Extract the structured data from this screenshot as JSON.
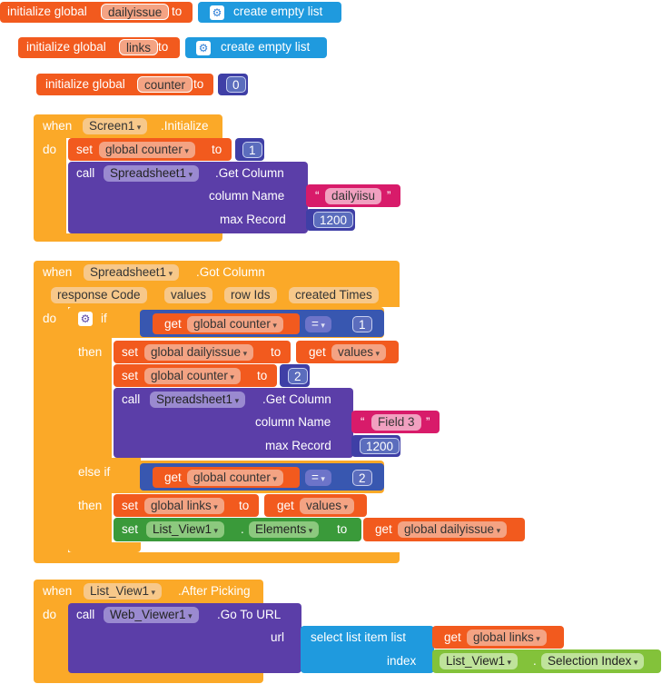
{
  "colors": {
    "orange_red": "#f25a1e",
    "orange_red_pill": "#f4a383",
    "blue": "#1f9ade",
    "indigo": "#3f3fa6",
    "indigo_pill": "#6d74c9",
    "event_orange": "#fba928",
    "event_pill": "#f7c88a",
    "purple": "#5b3ea8",
    "purple_pill": "#9a8ad0",
    "magenta": "#d81b6a",
    "green": "#3a9a3a",
    "green_pill": "#8cc97e",
    "lime": "#83c23a",
    "lime_pill": "#bfe39b",
    "ifblue": "#3857b0"
  },
  "blocks": {
    "init1": {
      "label": "initialize global",
      "var": "dailyissue",
      "to": "to",
      "value": "create empty list"
    },
    "init2": {
      "label": "initialize global",
      "var": "links",
      "to": "to",
      "value": "create empty list"
    },
    "init3": {
      "label": "initialize global",
      "var": "counter",
      "to": "to",
      "value": "0"
    },
    "screen_init": {
      "when": "when",
      "component": "Screen1",
      "event": ".Initialize",
      "do": "do",
      "set_label": "set",
      "set_var": "global counter",
      "set_to": "to",
      "set_value": "1",
      "call": "call",
      "call_component": "Spreadsheet1",
      "method": ".Get Column",
      "param1_label": "column Name",
      "param1_value": "dailyiisu",
      "param2_label": "max Record",
      "param2_value": "1200"
    },
    "got_column": {
      "when": "when",
      "component": "Spreadsheet1",
      "event": ".Got Column",
      "params": [
        "response Code",
        "values",
        "row Ids",
        "created Times"
      ],
      "do": "do",
      "if": "if",
      "get": "get",
      "get_var": "global counter",
      "op": "=",
      "if_value": "1",
      "then": "then",
      "set1_label": "set",
      "set1_var": "global dailyissue",
      "set1_to": "to",
      "set1_get": "get",
      "set1_get_var": "values",
      "set2_label": "set",
      "set2_var": "global counter",
      "set2_to": "to",
      "set2_value": "2",
      "call": "call",
      "call_component": "Spreadsheet1",
      "method": ".Get Column",
      "param1_label": "column Name",
      "param1_value": "Field 3",
      "param2_label": "max Record",
      "param2_value": "1200",
      "elseif": "else if",
      "elseif_get": "get",
      "elseif_var": "global counter",
      "elseif_op": "=",
      "elseif_value": "2",
      "then2": "then",
      "set3_label": "set",
      "set3_var": "global links",
      "set3_to": "to",
      "set3_get": "get",
      "set3_get_var": "values",
      "set4_label": "set",
      "set4_component": "List_View1",
      "set4_dot": ".",
      "set4_prop": "Elements",
      "set4_to": "to",
      "set4_get": "get",
      "set4_get_var": "global dailyissue"
    },
    "after_picking": {
      "when": "when",
      "component": "List_View1",
      "event": ".After Picking",
      "do": "do",
      "call": "call",
      "call_component": "Web_Viewer1",
      "method": ".Go To URL",
      "url_label": "url",
      "select_label": "select list item  list",
      "get": "get",
      "get_var": "global links",
      "index_label": "index",
      "index_component": "List_View1",
      "index_dot": ".",
      "index_prop": "Selection Index"
    }
  }
}
